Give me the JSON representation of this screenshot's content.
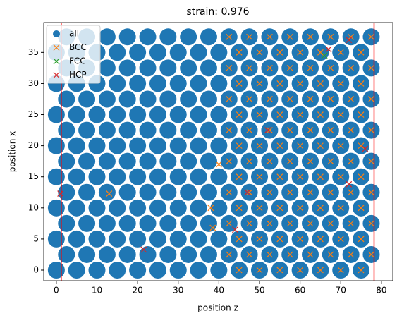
{
  "chart_data": {
    "type": "scatter",
    "title": "strain: 0.976",
    "xlabel": "position z",
    "ylabel": "position x",
    "xlim": [
      -3.1,
      82.8
    ],
    "ylim": [
      -1.7,
      39.8
    ],
    "xticks": [
      0,
      10,
      20,
      30,
      40,
      50,
      60,
      70,
      80
    ],
    "yticks": [
      0,
      5,
      10,
      15,
      20,
      25,
      30,
      35
    ],
    "legend": "upper left",
    "vlines": {
      "x": [
        1.2,
        78.2
      ],
      "color": "red"
    },
    "series": [
      {
        "name": "all",
        "marker": "o",
        "color": "#1f77b4",
        "x": [
          0,
          5,
          10,
          15,
          20,
          25,
          30,
          35,
          40,
          45,
          50,
          55,
          60,
          65,
          70,
          75,
          2.5,
          7.5,
          12.5,
          17.5,
          22.5,
          27.5,
          32.5,
          37.5,
          42.5,
          47.5,
          52.5,
          57.5,
          62.5,
          67.5,
          72.5,
          77.5,
          0,
          5,
          10,
          15,
          20,
          25,
          30,
          35,
          40,
          45,
          50,
          55,
          60,
          65,
          70,
          75,
          2.5,
          7.5,
          12.5,
          17.5,
          22.5,
          27.5,
          32.5,
          37.5,
          42.5,
          47.5,
          52.5,
          57.5,
          62.5,
          67.5,
          72.5,
          77.5,
          0,
          5,
          10,
          15,
          20,
          25,
          30,
          35,
          40,
          45,
          50,
          55,
          60,
          65,
          70,
          75,
          2.5,
          7.5,
          12.5,
          17.5,
          22.5,
          27.5,
          32.5,
          37.5,
          42.5,
          47.5,
          52.5,
          57.5,
          62.5,
          67.5,
          72.5,
          77.5,
          0,
          5,
          10,
          15,
          20,
          25,
          30,
          35,
          40,
          45,
          50,
          55,
          60,
          65,
          70,
          75,
          2.5,
          7.5,
          12.5,
          17.5,
          22.5,
          27.5,
          32.5,
          37.5,
          42.5,
          47.5,
          52.5,
          57.5,
          62.5,
          67.5,
          72.5,
          77.5,
          0,
          5,
          10,
          15,
          20,
          25,
          30,
          35,
          40,
          45,
          50,
          55,
          60,
          65,
          70,
          75,
          2.5,
          7.5,
          12.5,
          17.5,
          22.5,
          27.5,
          32.5,
          37.5,
          42.5,
          47.5,
          52.5,
          57.5,
          62.5,
          67.5,
          72.5,
          77.5,
          0,
          5,
          10,
          15,
          20,
          25,
          30,
          35,
          40,
          45,
          50,
          55,
          60,
          65,
          70,
          75,
          2.5,
          7.5,
          12.5,
          17.5,
          22.5,
          27.5,
          32.5,
          37.5,
          42.5,
          47.5,
          52.5,
          57.5,
          62.5,
          67.5,
          72.5,
          77.5,
          0,
          5,
          10,
          15,
          20,
          25,
          30,
          35,
          40,
          45,
          50,
          55,
          60,
          65,
          70,
          75,
          2.5,
          7.5,
          12.5,
          17.5,
          22.5,
          27.5,
          32.5,
          37.5,
          42.5,
          47.5,
          52.5,
          57.5,
          62.5,
          67.5,
          72.5,
          77.5,
          0,
          5,
          10,
          15,
          20,
          25,
          30,
          35,
          40,
          45,
          50,
          55,
          60,
          65,
          70,
          75,
          2.5,
          7.5,
          12.5,
          17.5,
          22.5,
          27.5,
          32.5,
          37.5,
          42.5,
          47.5,
          52.5,
          57.5,
          62.5,
          67.5,
          72.5,
          77.5
        ],
        "y": [
          0,
          0,
          0,
          0,
          0,
          0,
          0,
          0,
          0,
          0,
          0,
          0,
          0,
          0,
          0,
          0,
          2.5,
          2.5,
          2.5,
          2.5,
          2.5,
          2.5,
          2.5,
          2.5,
          2.5,
          2.5,
          2.5,
          2.5,
          2.5,
          2.5,
          2.5,
          2.5,
          5,
          5,
          5,
          5,
          5,
          5,
          5,
          5,
          5,
          5,
          5,
          5,
          5,
          5,
          5,
          5,
          7.5,
          7.5,
          7.5,
          7.5,
          7.5,
          7.5,
          7.5,
          7.5,
          7.5,
          7.5,
          7.5,
          7.5,
          7.5,
          7.5,
          7.5,
          7.5,
          10,
          10,
          10,
          10,
          10,
          10,
          10,
          10,
          10,
          10,
          10,
          10,
          10,
          10,
          10,
          10,
          12.5,
          12.5,
          12.5,
          12.5,
          12.5,
          12.5,
          12.5,
          12.5,
          12.5,
          12.5,
          12.5,
          12.5,
          12.5,
          12.5,
          12.5,
          12.5,
          15,
          15,
          15,
          15,
          15,
          15,
          15,
          15,
          15,
          15,
          15,
          15,
          15,
          15,
          15,
          15,
          17.5,
          17.5,
          17.5,
          17.5,
          17.5,
          17.5,
          17.5,
          17.5,
          17.5,
          17.5,
          17.5,
          17.5,
          17.5,
          17.5,
          17.5,
          17.5,
          20,
          20,
          20,
          20,
          20,
          20,
          20,
          20,
          20,
          20,
          20,
          20,
          20,
          20,
          20,
          20,
          22.5,
          22.5,
          22.5,
          22.5,
          22.5,
          22.5,
          22.5,
          22.5,
          22.5,
          22.5,
          22.5,
          22.5,
          22.5,
          22.5,
          22.5,
          22.5,
          25,
          25,
          25,
          25,
          25,
          25,
          25,
          25,
          25,
          25,
          25,
          25,
          25,
          25,
          25,
          25,
          27.5,
          27.5,
          27.5,
          27.5,
          27.5,
          27.5,
          27.5,
          27.5,
          27.5,
          27.5,
          27.5,
          27.5,
          27.5,
          27.5,
          27.5,
          27.5,
          30,
          30,
          30,
          30,
          30,
          30,
          30,
          30,
          30,
          30,
          30,
          30,
          30,
          30,
          30,
          30,
          32.5,
          32.5,
          32.5,
          32.5,
          32.5,
          32.5,
          32.5,
          32.5,
          32.5,
          32.5,
          32.5,
          32.5,
          32.5,
          32.5,
          32.5,
          32.5,
          35,
          35,
          35,
          35,
          35,
          35,
          35,
          35,
          35,
          35,
          35,
          35,
          35,
          35,
          35,
          35,
          37.5,
          37.5,
          37.5,
          37.5,
          37.5,
          37.5,
          37.5,
          37.5,
          37.5,
          37.5,
          37.5,
          37.5,
          37.5,
          37.5,
          37.5,
          37.5
        ]
      },
      {
        "name": "BCC",
        "marker": "x",
        "color": "#ff7f0e",
        "x": [
          45,
          50,
          55,
          60,
          65,
          70,
          75,
          42.5,
          47.5,
          52.5,
          57.5,
          62.5,
          67.5,
          72.5,
          77.5,
          45,
          50,
          55,
          60,
          65,
          70,
          75,
          42.5,
          47.5,
          52.5,
          57.5,
          62.5,
          67.5,
          72.5,
          77.5,
          45,
          50,
          55,
          60,
          65,
          70,
          75,
          42.5,
          47.5,
          52.5,
          57.5,
          62.5,
          67.5,
          72.5,
          77.5,
          45,
          50,
          55,
          60,
          65,
          70,
          75,
          42.5,
          47.5,
          52.5,
          57.5,
          62.5,
          67.5,
          72.5,
          77.5,
          45,
          50,
          55,
          60,
          65,
          70,
          75,
          42.5,
          47.5,
          52.5,
          57.5,
          62.5,
          67.5,
          72.5,
          77.5,
          45,
          50,
          55,
          60,
          65,
          70,
          75,
          42.5,
          47.5,
          52.5,
          57.5,
          62.5,
          67.5,
          72.5,
          77.5,
          45,
          50,
          55,
          60,
          65,
          70,
          75,
          42.5,
          47.5,
          52.5,
          57.5,
          62.5,
          67.5,
          72.5,
          77.5,
          45,
          50,
          55,
          60,
          65,
          70,
          75,
          42.5,
          47.5,
          52.5,
          57.5,
          62.5,
          67.5,
          72.5,
          77.5,
          13,
          40,
          38,
          38.5
        ],
        "y": [
          0,
          0,
          0,
          0,
          0,
          0,
          0,
          2.5,
          2.5,
          2.5,
          2.5,
          2.5,
          2.5,
          2.5,
          2.5,
          5,
          5,
          5,
          5,
          5,
          5,
          5,
          7.5,
          7.5,
          7.5,
          7.5,
          7.5,
          7.5,
          7.5,
          7.5,
          10,
          10,
          10,
          10,
          10,
          10,
          10,
          12.5,
          12.5,
          12.5,
          12.5,
          12.5,
          12.5,
          12.5,
          12.5,
          15,
          15,
          15,
          15,
          15,
          15,
          15,
          17.5,
          17.5,
          17.5,
          17.5,
          17.5,
          17.5,
          17.5,
          17.5,
          20,
          20,
          20,
          20,
          20,
          20,
          20,
          22.5,
          22.5,
          22.5,
          22.5,
          22.5,
          22.5,
          22.5,
          22.5,
          25,
          25,
          25,
          25,
          25,
          25,
          25,
          27.5,
          27.5,
          27.5,
          27.5,
          27.5,
          27.5,
          27.5,
          27.5,
          30,
          30,
          30,
          30,
          30,
          30,
          30,
          32.5,
          32.5,
          32.5,
          32.5,
          32.5,
          32.5,
          32.5,
          32.5,
          35,
          35,
          35,
          35,
          35,
          35,
          35,
          37.5,
          37.5,
          37.5,
          37.5,
          37.5,
          37.5,
          37.5,
          37.5,
          12.3,
          17,
          10,
          6.8
        ]
      },
      {
        "name": "FCC",
        "marker": "x",
        "color": "#2ca02c",
        "x": [
          66
        ],
        "y": [
          34.5
        ]
      },
      {
        "name": "HCP",
        "marker": "x",
        "color": "#d62728",
        "x": [
          21.5,
          1,
          72,
          47,
          52,
          76,
          72,
          67,
          44
        ],
        "y": [
          3.3,
          12.3,
          13.8,
          12.5,
          22.5,
          19.5,
          37,
          35.5,
          6.5
        ]
      }
    ]
  }
}
